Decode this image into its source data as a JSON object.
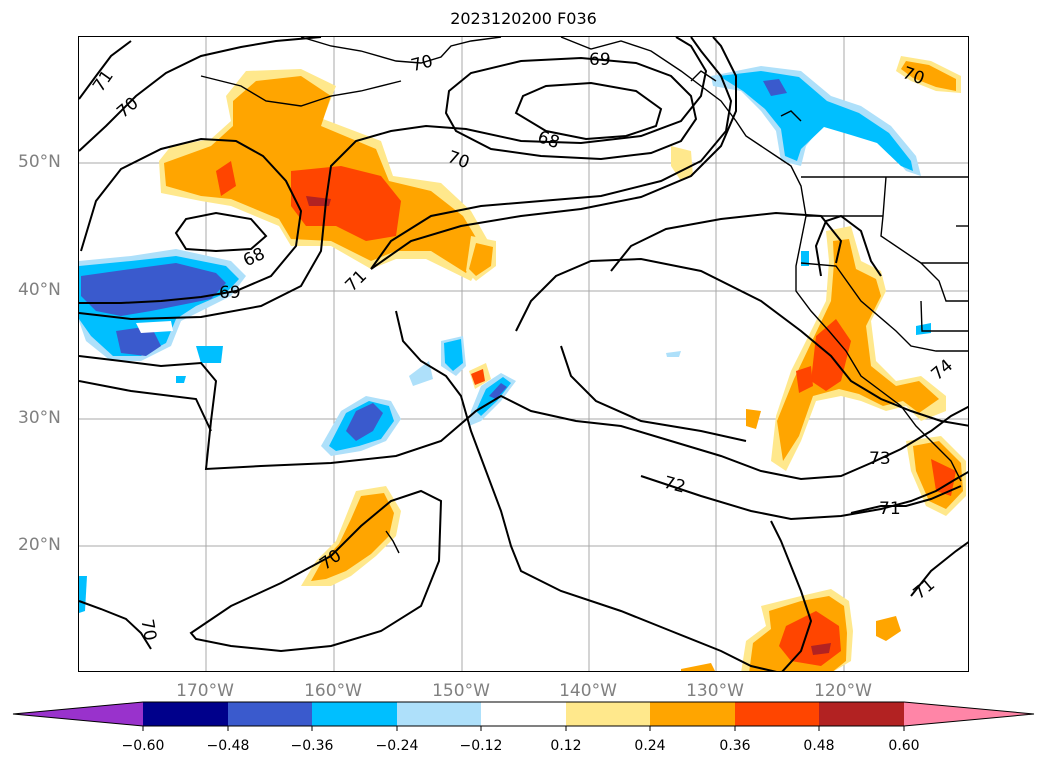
{
  "title": "2023120200 F036",
  "lat_labels": [
    "50°N",
    "40°N",
    "30°N",
    "20°N"
  ],
  "lon_labels": [
    "170°W",
    "160°W",
    "150°W",
    "140°W",
    "130°W",
    "120°W"
  ],
  "colorbar": {
    "ticks": [
      "−0.60",
      "−0.48",
      "−0.36",
      "−0.24",
      "−0.12",
      "0.12",
      "0.24",
      "0.36",
      "0.48",
      "0.60"
    ],
    "colors": [
      "#9932cc",
      "#00008b",
      "#3a5acd",
      "#00bfff",
      "#aee0fa",
      "#ffffff",
      "#ffe88c",
      "#ffa500",
      "#ff4500",
      "#b22222",
      "#ff85a7"
    ]
  },
  "contour_labels": [
    "71",
    "70",
    "70",
    "69",
    "68",
    "70",
    "70",
    "68",
    "69",
    "71",
    "70",
    "72",
    "71",
    "71",
    "70",
    "73",
    "74"
  ]
}
